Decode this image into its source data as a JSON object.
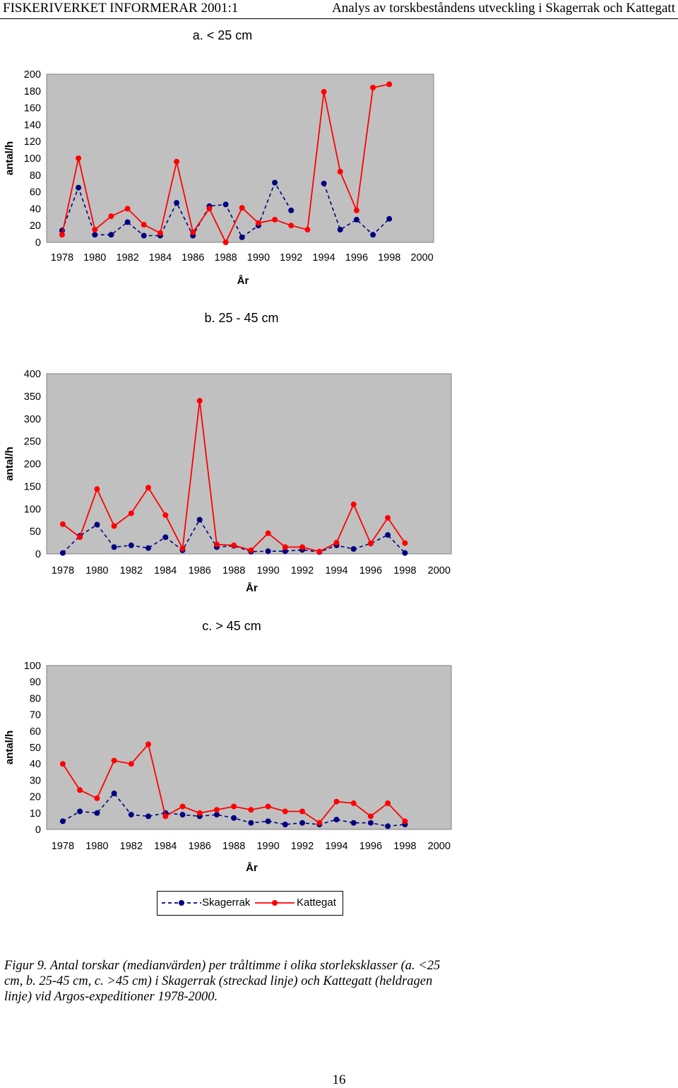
{
  "header": {
    "left": "FISKERIVERKET INFORMERAR 2001:1",
    "right": "Analys av torskbeståndens utveckling i Skagerrak och Kattegatt"
  },
  "colors": {
    "skagerrak": "#000080",
    "kattegat": "#ff0000",
    "plot_bg": "#c0c0c0"
  },
  "legend": {
    "skagerrak": "Skagerrak",
    "kattegat": "Kattegat"
  },
  "caption": "Figur 9. Antal torskar (medianvärden) per tråltimme i olika storleksklasser (a. <25 cm, b. 25-45 cm, c. >45 cm) i Skagerrak (streckad linje) och Kattegatt (heldragen linje) vid Argos-expeditioner 1978-2000.",
  "page_number": "16",
  "chart_data": [
    {
      "type": "line",
      "title": "a. < 25 cm",
      "xlabel": "År",
      "ylabel": "antal/h",
      "xlim": [
        1978,
        2000
      ],
      "ylim": [
        0,
        200
      ],
      "yticks": [
        0,
        20,
        40,
        60,
        80,
        100,
        120,
        140,
        160,
        180,
        200
      ],
      "xticks": [
        1978,
        1980,
        1982,
        1984,
        1986,
        1988,
        1990,
        1992,
        1994,
        1996,
        1998,
        2000
      ],
      "x": [
        1978,
        1979,
        1980,
        1981,
        1982,
        1983,
        1984,
        1985,
        1986,
        1987,
        1988,
        1989,
        1990,
        1991,
        1992,
        1993,
        1994,
        1995,
        1996,
        1997,
        1998
      ],
      "series": [
        {
          "name": "Skagerrak",
          "style": "dashed",
          "values": [
            14,
            65,
            9,
            9,
            24,
            8,
            8,
            47,
            8,
            43,
            45,
            6,
            20,
            71,
            38,
            null,
            70,
            15,
            27,
            9,
            28
          ]
        },
        {
          "name": "Kattegat",
          "style": "solid",
          "values": [
            9,
            100,
            15,
            31,
            40,
            21,
            11,
            96,
            12,
            40,
            0,
            41,
            23,
            27,
            20,
            15,
            179,
            84,
            38,
            184,
            188
          ]
        }
      ]
    },
    {
      "type": "line",
      "title": "b. 25 - 45 cm",
      "xlabel": "År",
      "ylabel": "antal/h",
      "xlim": [
        1978,
        2000
      ],
      "ylim": [
        0,
        400
      ],
      "yticks": [
        0,
        50,
        100,
        150,
        200,
        250,
        300,
        350,
        400
      ],
      "xticks": [
        1978,
        1980,
        1982,
        1984,
        1986,
        1988,
        1990,
        1992,
        1994,
        1996,
        1998,
        2000
      ],
      "x": [
        1978,
        1979,
        1980,
        1981,
        1982,
        1983,
        1984,
        1985,
        1986,
        1987,
        1988,
        1989,
        1990,
        1991,
        1992,
        1993,
        1994,
        1995,
        1996,
        1997,
        1998,
        1999
      ],
      "series": [
        {
          "name": "Skagerrak",
          "style": "dashed",
          "values": [
            2,
            40,
            65,
            15,
            19,
            13,
            37,
            8,
            76,
            15,
            18,
            5,
            6,
            6,
            9,
            4,
            19,
            11,
            23,
            42,
            2,
            null
          ]
        },
        {
          "name": "Kattegat",
          "style": "solid",
          "values": [
            66,
            37,
            144,
            62,
            90,
            147,
            86,
            12,
            340,
            21,
            19,
            8,
            46,
            15,
            15,
            5,
            25,
            110,
            23,
            80,
            24,
            null
          ]
        }
      ]
    },
    {
      "type": "line",
      "title": "c. > 45 cm",
      "xlabel": "År",
      "ylabel": "antal/h",
      "xlim": [
        1978,
        2000
      ],
      "ylim": [
        0,
        100
      ],
      "yticks": [
        0,
        10,
        20,
        30,
        40,
        50,
        60,
        70,
        80,
        90,
        100
      ],
      "xticks": [
        1978,
        1980,
        1982,
        1984,
        1986,
        1988,
        1990,
        1992,
        1994,
        1996,
        1998,
        2000
      ],
      "x": [
        1978,
        1979,
        1980,
        1981,
        1982,
        1983,
        1984,
        1985,
        1986,
        1987,
        1988,
        1989,
        1990,
        1991,
        1992,
        1993,
        1994,
        1995,
        1996,
        1997,
        1998,
        1999
      ],
      "series": [
        {
          "name": "Skagerrak",
          "style": "dashed",
          "values": [
            5,
            11,
            10,
            22,
            9,
            8,
            10,
            9,
            8,
            9,
            7,
            4,
            5,
            3,
            4,
            3,
            6,
            4,
            4,
            2,
            3,
            null
          ]
        },
        {
          "name": "Kattegat",
          "style": "solid",
          "values": [
            40,
            24,
            19,
            42,
            40,
            52,
            8,
            14,
            10,
            12,
            14,
            12,
            14,
            11,
            11,
            4,
            17,
            16,
            8,
            16,
            5,
            null
          ]
        }
      ]
    }
  ]
}
